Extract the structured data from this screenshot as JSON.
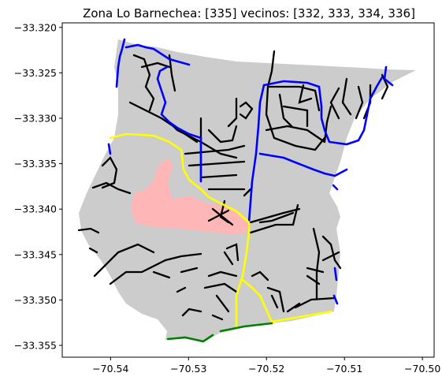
{
  "chart_data": {
    "type": "map",
    "title": "Zona Lo Barnechea: [335] vecinos: [332, 333, 334, 336]",
    "xlabel": "",
    "ylabel": "",
    "xlim": [
      -70.5462,
      -70.4985
    ],
    "ylim": [
      -33.3563,
      -33.3195
    ],
    "xticks": [
      -70.54,
      -70.53,
      -70.52,
      -70.51,
      -70.5
    ],
    "xtick_labels": [
      "−70.54",
      "−70.53",
      "−70.52",
      "−70.51",
      "−70.50"
    ],
    "yticks": [
      -33.32,
      -33.325,
      -33.33,
      -33.335,
      -33.34,
      -33.345,
      -33.35,
      -33.355
    ],
    "ytick_labels": [
      "−33.320",
      "−33.325",
      "−33.330",
      "−33.335",
      "−33.340",
      "−33.345",
      "−33.350",
      "−33.355"
    ],
    "grid": false,
    "colors": {
      "zone_fill": "#cccccc",
      "highlight_fill": "#ffb6b6",
      "streets": "#000000",
      "border_blue": "#0000ff",
      "border_yellow": "#ffff00",
      "border_green": "#008000"
    }
  }
}
